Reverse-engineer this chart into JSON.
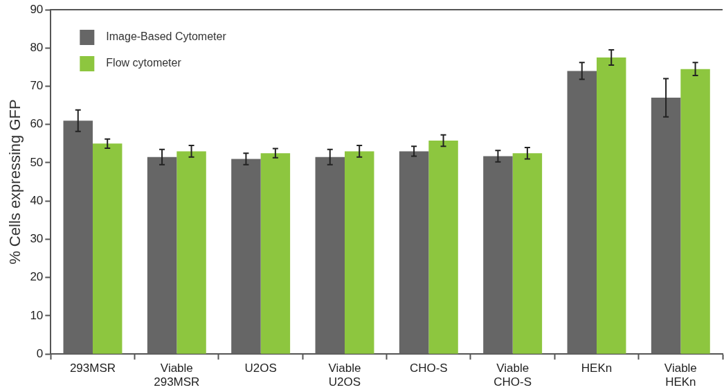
{
  "chart_data": {
    "type": "bar",
    "ylabel": "% Cells expressing GFP",
    "categories": [
      "293MSR",
      "Viable 293MSR",
      "U2OS",
      "Viable U2OS",
      "CHO-S",
      "Viable CHO-S",
      "HEKn",
      "Viable HEKn"
    ],
    "series": [
      {
        "name": "Image-Based Cytometer",
        "color": "#666666",
        "values": [
          61,
          51.5,
          51,
          51.5,
          53,
          51.7,
          74,
          67
        ],
        "errors": [
          2.8,
          2,
          1.5,
          2,
          1.3,
          1.5,
          2.2,
          5
        ]
      },
      {
        "name": "Flow cytometer",
        "color": "#8dc63f",
        "values": [
          55,
          53,
          52.5,
          53,
          55.8,
          52.5,
          77.5,
          74.5
        ],
        "errors": [
          1.2,
          1.5,
          1.2,
          1.5,
          1.5,
          1.5,
          2,
          1.7
        ]
      }
    ],
    "ylim": [
      0,
      90
    ],
    "yticks": [
      0,
      10,
      20,
      30,
      40,
      50,
      60,
      70,
      80,
      90
    ],
    "grid": false,
    "legend": "top left"
  }
}
